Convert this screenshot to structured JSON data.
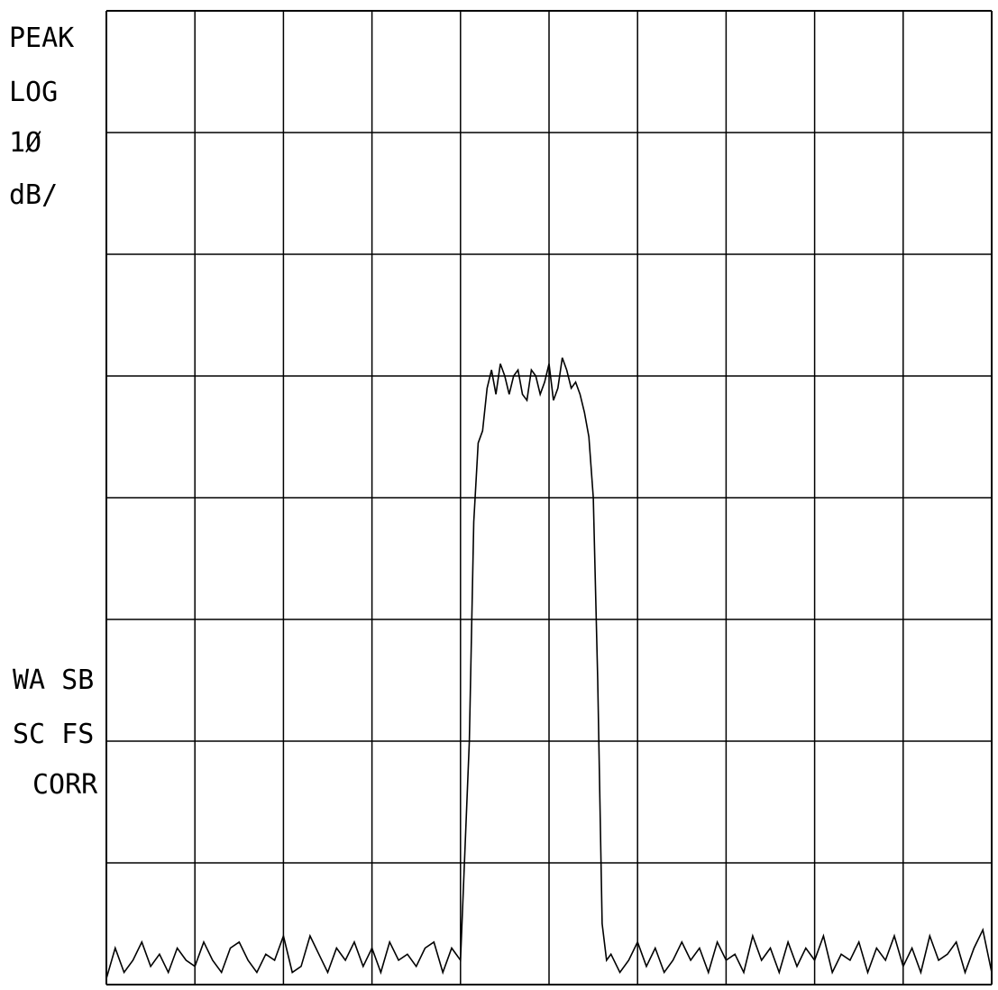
{
  "chart_data": {
    "type": "line",
    "title": "",
    "xlabel": "",
    "ylabel": "",
    "y_scale": "log",
    "y_units": "dB",
    "x_divisions": 10,
    "y_divisions": 8,
    "ylim": [
      -80,
      0
    ],
    "grid": true,
    "annotations": {
      "detector": "PEAK",
      "scale_type": "LOG",
      "scale_value": "1Ø",
      "scale_unit": "dB/",
      "status_line1": "WA SB",
      "status_line2": "SC FS",
      "status_line3": "CORR"
    },
    "series": [
      {
        "x": [
          0,
          0.1,
          0.2,
          0.3,
          0.4,
          0.5,
          0.6,
          0.7,
          0.8,
          0.9,
          1.0,
          1.1,
          1.2,
          1.3,
          1.4,
          1.5,
          1.6,
          1.7,
          1.8,
          1.9,
          2.0,
          2.1,
          2.2,
          2.3,
          2.4,
          2.5,
          2.6,
          2.7,
          2.8,
          2.9,
          3.0,
          3.1,
          3.2,
          3.3,
          3.4,
          3.5,
          3.6,
          3.7,
          3.8,
          3.9,
          4.0,
          4.1,
          4.15,
          4.2,
          4.25,
          4.3,
          4.35,
          4.4,
          4.45,
          4.5,
          4.55,
          4.6,
          4.65,
          4.7,
          4.75,
          4.8,
          4.85,
          4.9,
          4.95,
          5.0,
          5.05,
          5.1,
          5.15,
          5.2,
          5.25,
          5.3,
          5.35,
          5.4,
          5.45,
          5.5,
          5.55,
          5.6,
          5.65,
          5.7,
          5.8,
          5.9,
          6.0,
          6.1,
          6.2,
          6.3,
          6.4,
          6.5,
          6.6,
          6.7,
          6.8,
          6.9,
          7.0,
          7.1,
          7.2,
          7.3,
          7.4,
          7.5,
          7.6,
          7.7,
          7.8,
          7.9,
          8.0,
          8.1,
          8.2,
          8.3,
          8.4,
          8.5,
          8.6,
          8.7,
          8.8,
          8.9,
          9.0,
          9.1,
          9.2,
          9.3,
          9.4,
          9.5,
          9.6,
          9.7,
          9.8,
          9.9,
          10.0
        ],
        "y": [
          -79.5,
          -77,
          -79,
          -78,
          -76.5,
          -78.5,
          -77.5,
          -79,
          -77,
          -78,
          -78.5,
          -76.5,
          -78,
          -79,
          -77,
          -76.5,
          -78,
          -79,
          -77.5,
          -78,
          -76,
          -79,
          -78.5,
          -76,
          -77.5,
          -79,
          -77,
          -78,
          -76.5,
          -78.5,
          -77,
          -79,
          -76.5,
          -78,
          -77.5,
          -78.5,
          -77,
          -76.5,
          -79,
          -77,
          -78,
          -60,
          -42,
          -35.5,
          -34.5,
          -31,
          -29.5,
          -31.5,
          -29,
          -30,
          -31.5,
          -30,
          -29.5,
          -31.5,
          -32,
          -29.5,
          -30,
          -31.5,
          -30.5,
          -29,
          -32,
          -31,
          -28.5,
          -29.5,
          -31,
          -30.5,
          -31.5,
          -33,
          -35,
          -40,
          -55,
          -75,
          -78,
          -77.5,
          -79,
          -78,
          -76.5,
          -78.5,
          -77,
          -79,
          -78,
          -76.5,
          -78,
          -77,
          -79,
          -76.5,
          -78,
          -77.5,
          -79,
          -76,
          -78,
          -77,
          -79,
          -76.5,
          -78.5,
          -77,
          -78,
          -76,
          -79,
          -77.5,
          -78,
          -76.5,
          -79,
          -77,
          -78,
          -76,
          -78.5,
          -77,
          -79,
          -76,
          -78,
          -77.5,
          -76.5,
          -79,
          -77,
          -75.5,
          -79
        ]
      }
    ]
  }
}
